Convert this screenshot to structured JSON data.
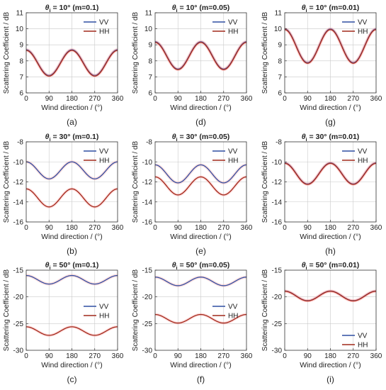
{
  "figure": {
    "colors": {
      "vv": "#2f4fa2",
      "hh": "#a0281a",
      "axis": "#333333",
      "grid": "#c9c9c9",
      "glow": "#ff9a9a"
    }
  },
  "chart_data": [
    {
      "id": "a",
      "type": "line",
      "caption": "(a)",
      "title": {
        "theta": "θ",
        "sub": "i",
        "rest": " = 10° (m=0.1)"
      },
      "xlabel": "Wind direction / (°)",
      "ylabel": "Scattering Coefficient / dB",
      "xlim": [
        0,
        360
      ],
      "ylim": [
        6,
        11
      ],
      "xticks": [
        0,
        90,
        180,
        270,
        360
      ],
      "yticks": [
        6,
        7,
        8,
        9,
        10,
        11
      ],
      "grid": true,
      "legend": "top-right",
      "x": [
        0,
        45,
        90,
        135,
        180,
        225,
        270,
        315,
        360
      ],
      "series": [
        {
          "name": "VV",
          "color_key": "vv",
          "values": [
            8.7,
            7.9,
            7.1,
            7.9,
            8.7,
            7.9,
            7.1,
            7.9,
            8.7
          ]
        },
        {
          "name": "HH",
          "color_key": "hh",
          "values": [
            8.65,
            7.85,
            7.05,
            7.85,
            8.65,
            7.85,
            7.05,
            7.85,
            8.65
          ]
        }
      ]
    },
    {
      "id": "d",
      "type": "line",
      "caption": "(d)",
      "title": {
        "theta": "θ",
        "sub": "i",
        "rest": " = 10° (m=0.05)"
      },
      "xlabel": "Wind direction / (°)",
      "ylabel": "Scattering Coefficient / dB",
      "xlim": [
        0,
        360
      ],
      "ylim": [
        6,
        11
      ],
      "xticks": [
        0,
        90,
        180,
        270,
        360
      ],
      "yticks": [
        6,
        7,
        8,
        9,
        10,
        11
      ],
      "grid": true,
      "legend": "top-right",
      "x": [
        0,
        45,
        90,
        135,
        180,
        225,
        270,
        315,
        360
      ],
      "series": [
        {
          "name": "VV",
          "color_key": "vv",
          "values": [
            9.2,
            8.35,
            7.5,
            8.35,
            9.2,
            8.35,
            7.5,
            8.35,
            9.2
          ]
        },
        {
          "name": "HH",
          "color_key": "hh",
          "values": [
            9.15,
            8.3,
            7.45,
            8.3,
            9.15,
            8.3,
            7.45,
            8.3,
            9.15
          ]
        }
      ]
    },
    {
      "id": "g",
      "type": "line",
      "caption": "(g)",
      "title": {
        "theta": "θ",
        "sub": "i",
        "rest": " = 10° (m=0.01)"
      },
      "xlabel": "Wind direction / (°)",
      "ylabel": "Scattering Coefficient / dB",
      "xlim": [
        0,
        360
      ],
      "ylim": [
        6,
        11
      ],
      "xticks": [
        0,
        90,
        180,
        270,
        360
      ],
      "yticks": [
        6,
        7,
        8,
        9,
        10,
        11
      ],
      "grid": true,
      "legend": "top-right",
      "x": [
        0,
        45,
        90,
        135,
        180,
        225,
        270,
        315,
        360
      ],
      "series": [
        {
          "name": "VV",
          "color_key": "vv",
          "values": [
            10.0,
            8.95,
            7.9,
            8.95,
            10.0,
            8.95,
            7.9,
            8.95,
            10.0
          ]
        },
        {
          "name": "HH",
          "color_key": "hh",
          "values": [
            9.95,
            8.9,
            7.85,
            8.9,
            9.95,
            8.9,
            7.85,
            8.9,
            9.95
          ]
        }
      ]
    },
    {
      "id": "b",
      "type": "line",
      "caption": "(b)",
      "title": {
        "theta": "θ",
        "sub": "i",
        "rest": " = 30° (m=0.1)"
      },
      "xlabel": "Wind direction / (°)",
      "ylabel": "Scattering Coefficient / dB",
      "xlim": [
        0,
        360
      ],
      "ylim": [
        -16,
        -8
      ],
      "xticks": [
        0,
        90,
        180,
        270,
        360
      ],
      "yticks": [
        -16,
        -14,
        -12,
        -10,
        -8
      ],
      "grid": true,
      "legend": "top-right",
      "x": [
        0,
        45,
        90,
        135,
        180,
        225,
        270,
        315,
        360
      ],
      "series": [
        {
          "name": "VV",
          "color_key": "vv",
          "values": [
            -10.0,
            -10.85,
            -11.7,
            -10.85,
            -10.0,
            -10.85,
            -11.7,
            -10.85,
            -10.0
          ]
        },
        {
          "name": "HH",
          "color_key": "hh",
          "values": [
            -12.7,
            -13.6,
            -14.5,
            -13.6,
            -12.7,
            -13.6,
            -14.5,
            -13.6,
            -12.7
          ]
        }
      ]
    },
    {
      "id": "e",
      "type": "line",
      "caption": "(e)",
      "title": {
        "theta": "θ",
        "sub": "i",
        "rest": " = 30° (m=0.05)"
      },
      "xlabel": "Wind direction / (°)",
      "ylabel": "Scattering Coefficient / dB",
      "xlim": [
        0,
        360
      ],
      "ylim": [
        -16,
        -8
      ],
      "xticks": [
        0,
        90,
        180,
        270,
        360
      ],
      "yticks": [
        -16,
        -14,
        -12,
        -10,
        -8
      ],
      "grid": true,
      "legend": "top-right",
      "x": [
        0,
        45,
        90,
        135,
        180,
        225,
        270,
        315,
        360
      ],
      "series": [
        {
          "name": "VV",
          "color_key": "vv",
          "values": [
            -10.3,
            -11.2,
            -12.1,
            -11.2,
            -10.3,
            -11.2,
            -12.1,
            -11.2,
            -10.3
          ]
        },
        {
          "name": "HH",
          "color_key": "hh",
          "values": [
            -11.5,
            -12.4,
            -13.3,
            -12.4,
            -11.5,
            -12.4,
            -13.3,
            -12.4,
            -11.5
          ]
        }
      ]
    },
    {
      "id": "h",
      "type": "line",
      "caption": "(h)",
      "title": {
        "theta": "θ",
        "sub": "i",
        "rest": " = 30° (m=0.01)"
      },
      "xlabel": "Wind direction / (°)",
      "ylabel": "Scattering Coefficient / dB",
      "xlim": [
        0,
        360
      ],
      "ylim": [
        -16,
        -8
      ],
      "xticks": [
        0,
        90,
        180,
        270,
        360
      ],
      "yticks": [
        -16,
        -14,
        -12,
        -10,
        -8
      ],
      "grid": true,
      "legend": "top-right",
      "x": [
        0,
        45,
        90,
        135,
        180,
        225,
        270,
        315,
        360
      ],
      "series": [
        {
          "name": "VV",
          "color_key": "vv",
          "values": [
            -10.1,
            -11.15,
            -12.2,
            -11.15,
            -10.1,
            -11.15,
            -12.2,
            -11.15,
            -10.1
          ]
        },
        {
          "name": "HH",
          "color_key": "hh",
          "values": [
            -10.15,
            -11.2,
            -12.25,
            -11.2,
            -10.15,
            -11.2,
            -12.25,
            -11.2,
            -10.15
          ]
        }
      ]
    },
    {
      "id": "c",
      "type": "line",
      "caption": "(c)",
      "title": {
        "theta": "θ",
        "sub": "i",
        "rest": " = 50° (m=0.1)"
      },
      "xlabel": "Wind direction / (°)",
      "ylabel": "Scattering Coefficient / dB",
      "xlim": [
        0,
        360
      ],
      "ylim": [
        -30,
        -15
      ],
      "xticks": [
        0,
        90,
        180,
        270,
        360
      ],
      "yticks": [
        -30,
        -25,
        -20,
        -15
      ],
      "grid": true,
      "legend": "right",
      "x": [
        0,
        45,
        90,
        135,
        180,
        225,
        270,
        315,
        360
      ],
      "series": [
        {
          "name": "VV",
          "color_key": "vv",
          "values": [
            -16.0,
            -16.8,
            -17.6,
            -16.8,
            -16.0,
            -16.8,
            -17.6,
            -16.8,
            -16.0
          ]
        },
        {
          "name": "HH",
          "color_key": "hh",
          "values": [
            -25.6,
            -26.4,
            -27.2,
            -26.4,
            -25.6,
            -26.4,
            -27.2,
            -26.4,
            -25.6
          ]
        }
      ]
    },
    {
      "id": "f",
      "type": "line",
      "caption": "(f)",
      "title": {
        "theta": "θ",
        "sub": "i",
        "rest": " = 50° (m=0.05)"
      },
      "xlabel": "Wind direction / (°)",
      "ylabel": "Scattering Coefficient / dB",
      "xlim": [
        0,
        360
      ],
      "ylim": [
        -30,
        -15
      ],
      "xticks": [
        0,
        90,
        180,
        270,
        360
      ],
      "yticks": [
        -30,
        -25,
        -20,
        -15
      ],
      "grid": true,
      "legend": "right",
      "x": [
        0,
        45,
        90,
        135,
        180,
        225,
        270,
        315,
        360
      ],
      "series": [
        {
          "name": "VV",
          "color_key": "vv",
          "values": [
            -16.3,
            -17.1,
            -17.9,
            -17.1,
            -16.3,
            -17.1,
            -17.9,
            -17.1,
            -16.3
          ]
        },
        {
          "name": "HH",
          "color_key": "hh",
          "values": [
            -23.3,
            -24.1,
            -24.9,
            -24.1,
            -23.3,
            -24.1,
            -24.9,
            -24.1,
            -23.3
          ]
        }
      ]
    },
    {
      "id": "i",
      "type": "line",
      "caption": "(i)",
      "title": {
        "theta": "θ",
        "sub": "i",
        "rest": " = 50° (m=0.01)"
      },
      "xlabel": "Wind direction / (°)",
      "ylabel": "Scattering Coefficient / dB",
      "xlim": [
        0,
        360
      ],
      "ylim": [
        -30,
        -15
      ],
      "xticks": [
        0,
        90,
        180,
        270,
        360
      ],
      "yticks": [
        -30,
        -25,
        -20,
        -15
      ],
      "grid": true,
      "legend": "bottom-right",
      "x": [
        0,
        45,
        90,
        135,
        180,
        225,
        270,
        315,
        360
      ],
      "series": [
        {
          "name": "VV",
          "color_key": "vv",
          "values": [
            -18.9,
            -19.8,
            -20.7,
            -19.8,
            -18.9,
            -19.8,
            -20.7,
            -19.8,
            -18.9
          ]
        },
        {
          "name": "HH",
          "color_key": "hh",
          "values": [
            -18.95,
            -19.85,
            -20.75,
            -19.85,
            -18.95,
            -19.85,
            -20.75,
            -19.85,
            -18.95
          ]
        }
      ]
    }
  ]
}
